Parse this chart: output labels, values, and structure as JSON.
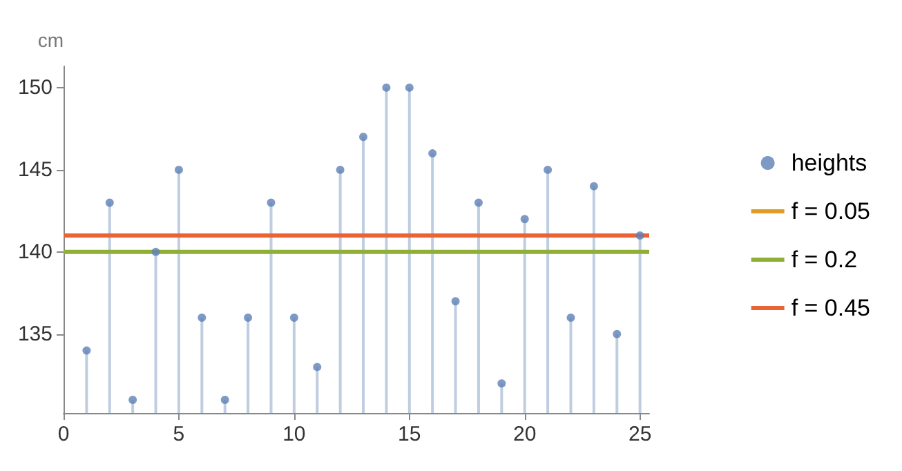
{
  "chart_data": {
    "type": "lollipop",
    "ylabel": "cm",
    "xlim": [
      0,
      25.4
    ],
    "ylim": [
      130.2,
      151.3
    ],
    "xticks": [
      0,
      5,
      10,
      15,
      20,
      25
    ],
    "yticks": [
      135,
      140,
      145,
      150
    ],
    "grid": false,
    "legend": "right",
    "series": [
      {
        "name": "heights",
        "marker": "circle",
        "color": "#5e81b5",
        "x": [
          1,
          2,
          3,
          4,
          5,
          6,
          7,
          8,
          9,
          10,
          11,
          12,
          13,
          14,
          15,
          16,
          17,
          18,
          19,
          20,
          21,
          22,
          23,
          24,
          25
        ],
        "values": [
          134,
          143,
          131,
          140,
          145,
          136,
          131,
          136,
          143,
          136,
          133,
          145,
          147,
          150,
          150,
          146,
          137,
          143,
          132,
          142,
          145,
          136,
          144,
          135,
          141
        ]
      },
      {
        "name": "f = 0.05",
        "type": "line",
        "marker": "none",
        "color": "#e19c24"
      },
      {
        "name": "f = 0.2",
        "type": "line",
        "marker": "none",
        "color": "#8fb032",
        "x": [
          0,
          25.4
        ],
        "values": [
          140,
          140
        ]
      },
      {
        "name": "f = 0.45",
        "type": "line",
        "marker": "none",
        "color": "#eb6235",
        "x": [
          0,
          25.4
        ],
        "values": [
          141,
          141
        ]
      }
    ]
  }
}
